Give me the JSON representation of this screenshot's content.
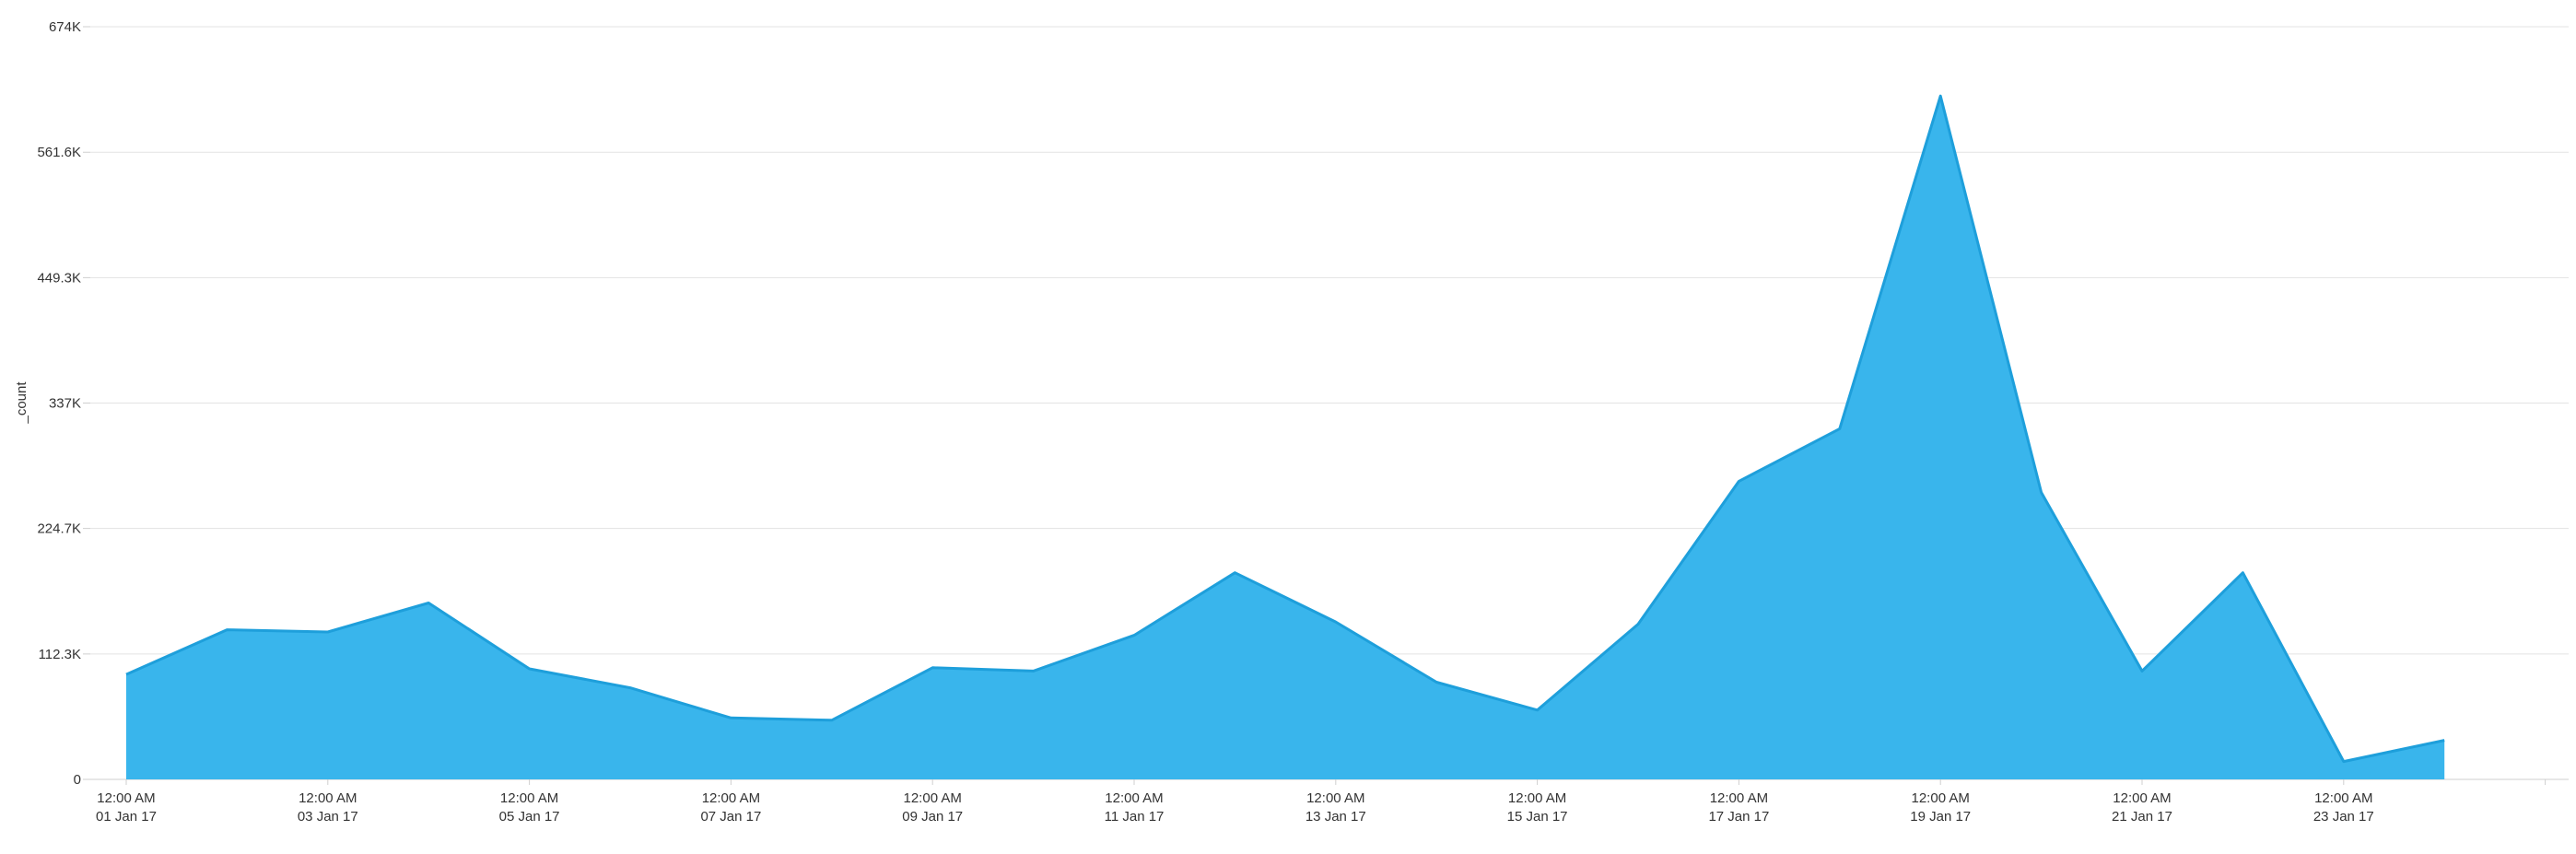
{
  "chart_data": {
    "type": "area",
    "title": "",
    "xlabel": "",
    "ylabel": "_count",
    "ylim": [
      0,
      674000
    ],
    "yticks": [
      {
        "value": 0,
        "label": "0"
      },
      {
        "value": 112300,
        "label": "112.3K"
      },
      {
        "value": 224700,
        "label": "224.7K"
      },
      {
        "value": 337000,
        "label": "337K"
      },
      {
        "value": 449300,
        "label": "449.3K"
      },
      {
        "value": 561600,
        "label": "561.6K"
      },
      {
        "value": 674000,
        "label": "674K"
      }
    ],
    "xticks": [
      {
        "x": "2017-01-01",
        "line1": "12:00 AM",
        "line2": "01 Jan 17"
      },
      {
        "x": "2017-01-03",
        "line1": "12:00 AM",
        "line2": "03 Jan 17"
      },
      {
        "x": "2017-01-05",
        "line1": "12:00 AM",
        "line2": "05 Jan 17"
      },
      {
        "x": "2017-01-07",
        "line1": "12:00 AM",
        "line2": "07 Jan 17"
      },
      {
        "x": "2017-01-09",
        "line1": "12:00 AM",
        "line2": "09 Jan 17"
      },
      {
        "x": "2017-01-11",
        "line1": "12:00 AM",
        "line2": "11 Jan 17"
      },
      {
        "x": "2017-01-13",
        "line1": "12:00 AM",
        "line2": "13 Jan 17"
      },
      {
        "x": "2017-01-15",
        "line1": "12:00 AM",
        "line2": "15 Jan 17"
      },
      {
        "x": "2017-01-17",
        "line1": "12:00 AM",
        "line2": "17 Jan 17"
      },
      {
        "x": "2017-01-19",
        "line1": "12:00 AM",
        "line2": "19 Jan 17"
      },
      {
        "x": "2017-01-21",
        "line1": "12:00 AM",
        "line2": "21 Jan 17"
      },
      {
        "x": "2017-01-23",
        "line1": "12:00 AM",
        "line2": "23 Jan 17"
      }
    ],
    "xlim": [
      "2017-01-01",
      "2017-01-25"
    ],
    "x": [
      "2017-01-01",
      "2017-01-02",
      "2017-01-03",
      "2017-01-04",
      "2017-01-05",
      "2017-01-06",
      "2017-01-07",
      "2017-01-08",
      "2017-01-09",
      "2017-01-10",
      "2017-01-11",
      "2017-01-12",
      "2017-01-13",
      "2017-01-14",
      "2017-01-15",
      "2017-01-16",
      "2017-01-17",
      "2017-01-18",
      "2017-01-19",
      "2017-01-20",
      "2017-01-21",
      "2017-01-22",
      "2017-01-23",
      "2017-01-24"
    ],
    "series": [
      {
        "values": [
          94000,
          134000,
          132000,
          158000,
          99000,
          82000,
          55000,
          53000,
          100000,
          97000,
          129000,
          185000,
          141000,
          87000,
          62000,
          139000,
          267000,
          314000,
          612000,
          257000,
          97000,
          185000,
          16000,
          35000
        ],
        "color": "#39b5ec",
        "stroke": "#1e9fdb"
      }
    ],
    "grid": true,
    "legend": "none"
  }
}
